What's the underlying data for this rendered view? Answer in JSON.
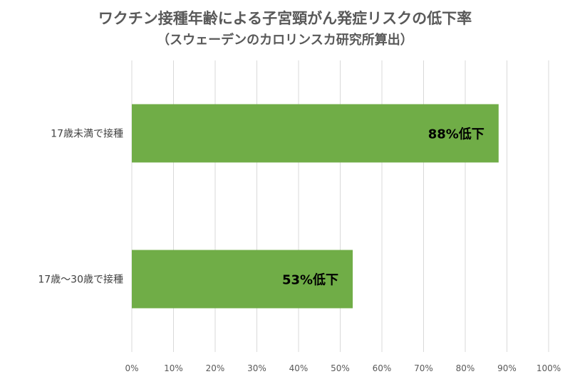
{
  "chart_data": {
    "type": "bar",
    "orientation": "horizontal",
    "title": "ワクチン接種年齢による子宮頸がん発症リスクの低下率",
    "subtitle": "（スウェーデンのカロリンスカ研究所算出）",
    "categories": [
      "17歳未満で接種",
      "17歳～30歳で接種"
    ],
    "values": [
      88,
      53
    ],
    "data_labels": [
      "88%低下",
      "53%低下"
    ],
    "xlim": [
      0,
      100
    ],
    "x_ticks": [
      "0%",
      "10%",
      "20%",
      "30%",
      "40%",
      "50%",
      "60%",
      "70%",
      "80%",
      "90%",
      "100%"
    ],
    "grid": true,
    "legend": "none",
    "bar_color": "#70ad47",
    "grid_color": "#d9d9d9"
  }
}
